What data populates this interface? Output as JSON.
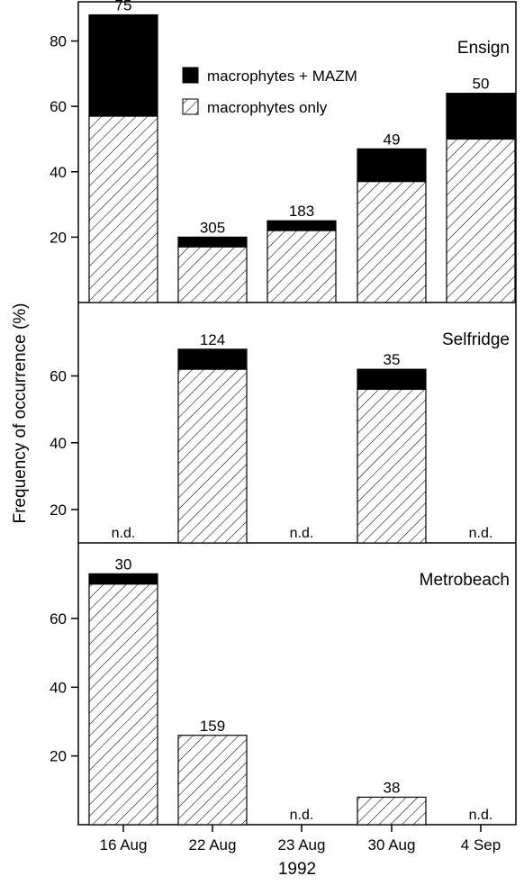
{
  "chart_data": {
    "type": "bar",
    "stacked": true,
    "ylabel": "Frequency of occurrence (%)",
    "xlabel": "1992",
    "categories": [
      "16 Aug",
      "22 Aug",
      "23 Aug",
      "30 Aug",
      "4 Sep"
    ],
    "legend": {
      "position": "top-center",
      "entries": [
        {
          "name": "macrophytes + MAZM",
          "fill": "solid black"
        },
        {
          "name": "macrophytes only",
          "fill": "diagonal hatch"
        }
      ]
    },
    "nd_label": "n.d.",
    "grid": false,
    "panels": [
      {
        "name": "Ensign",
        "ylim": [
          0,
          92
        ],
        "yticks": [
          20,
          40,
          60,
          80
        ],
        "macrophytes_only": [
          57,
          17,
          22,
          37,
          50
        ],
        "macrophytes_plus_mazm_total": [
          88,
          20,
          25,
          47,
          64
        ],
        "n_labels": [
          "75",
          "305",
          "183",
          "49",
          "50"
        ],
        "not_determined": [
          false,
          false,
          false,
          false,
          false
        ]
      },
      {
        "name": "Selfridge",
        "ylim": [
          10,
          82
        ],
        "yticks": [
          20,
          40,
          60
        ],
        "macrophytes_only": [
          null,
          62,
          null,
          56,
          null
        ],
        "macrophytes_plus_mazm_total": [
          null,
          68,
          null,
          62,
          null
        ],
        "n_labels": [
          "",
          "124",
          "",
          "35",
          ""
        ],
        "not_determined": [
          true,
          false,
          true,
          false,
          true
        ]
      },
      {
        "name": "Metrobeach",
        "ylim": [
          0,
          82
        ],
        "yticks": [
          20,
          40,
          60
        ],
        "macrophytes_only": [
          70,
          26,
          null,
          8,
          null
        ],
        "macrophytes_plus_mazm_total": [
          73,
          26,
          null,
          8,
          null
        ],
        "n_labels": [
          "30",
          "159",
          "",
          "38",
          ""
        ],
        "not_determined": [
          false,
          false,
          true,
          false,
          true
        ]
      }
    ]
  }
}
